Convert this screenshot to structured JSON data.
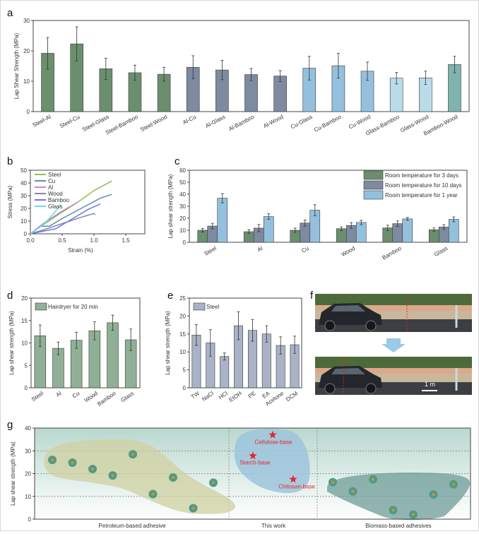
{
  "chart_data": [
    {
      "panel": "a",
      "type": "bar",
      "ylabel": "Lap Shear Strength (MPa)",
      "ylim": [
        0,
        30
      ],
      "yticks": [
        "0",
        "10",
        "20",
        "30"
      ],
      "categories": [
        "Steel-Al",
        "Steel-Cu",
        "Steel-Glass",
        "Steel-Bamboo",
        "Steel-Wood",
        "Al-Cu",
        "Al-Glass",
        "Al-Bamboo",
        "Al-Wood",
        "Cu-Glass",
        "Cu-Bamboo",
        "Cu-Wood",
        "Glass-Bamboo",
        "Glass-Wood",
        "Bamboo-Wood"
      ],
      "values": [
        19.2,
        22.3,
        14.1,
        12.8,
        12.3,
        14.6,
        13.7,
        12.2,
        11.7,
        14.3,
        15.1,
        13.3,
        11.0,
        11.1,
        15.5
      ],
      "errors": [
        5.2,
        5.6,
        3.5,
        2.5,
        2.3,
        3.8,
        3.2,
        2.0,
        1.8,
        3.9,
        4.1,
        3.0,
        1.9,
        2.2,
        2.7
      ],
      "colors": [
        "#6b8f6e",
        "#6b8f6e",
        "#6b8f6e",
        "#6b8f6e",
        "#6b8f6e",
        "#7d8aa0",
        "#7d8aa0",
        "#7d8aa0",
        "#7d8aa0",
        "#94c0de",
        "#94c0de",
        "#94c0de",
        "#b9dcea",
        "#b9dcea",
        "#7fb3ad"
      ]
    },
    {
      "panel": "b",
      "type": "line",
      "xlabel": "Strain (%)",
      "ylabel": "Stress (MPa)",
      "xlim": [
        0,
        1.8
      ],
      "ylim": [
        0,
        50
      ],
      "xticks": [
        "0.0",
        "0.5",
        "1.0",
        "1.5"
      ],
      "yticks": [
        "0",
        "10",
        "20",
        "30",
        "40",
        "50"
      ],
      "series": [
        {
          "name": "Steel",
          "color": "#8cc152",
          "points": [
            [
              0,
              0
            ],
            [
              0.2,
              7
            ],
            [
              0.5,
              17
            ],
            [
              0.75,
              25
            ],
            [
              1.0,
              34
            ],
            [
              1.28,
              41.5
            ]
          ]
        },
        {
          "name": "Cu",
          "color": "#5f90a3",
          "points": [
            [
              0,
              0
            ],
            [
              0.15,
              6
            ],
            [
              0.3,
              6
            ],
            [
              0.5,
              12
            ],
            [
              0.8,
              20
            ],
            [
              1.1,
              28
            ],
            [
              1.28,
              31
            ]
          ]
        },
        {
          "name": "Al",
          "color": "#c585d6",
          "points": [
            [
              0,
              0
            ],
            [
              0.2,
              8
            ],
            [
              0.5,
              18
            ],
            [
              0.75,
              25
            ]
          ]
        },
        {
          "name": "Wood",
          "color": "#8585a5",
          "points": [
            [
              0,
              0
            ],
            [
              0.2,
              3
            ],
            [
              0.5,
              8
            ],
            [
              0.8,
              13
            ],
            [
              1.0,
              16
            ],
            [
              1.02,
              15
            ]
          ]
        },
        {
          "name": "Bamboo",
          "color": "#7474e6",
          "points": [
            [
              0,
              0
            ],
            [
              0.2,
              2
            ],
            [
              0.4,
              4
            ],
            [
              0.6,
              10
            ],
            [
              0.9,
              19
            ],
            [
              1.1,
              23.5
            ]
          ]
        },
        {
          "name": "Glass",
          "color": "#62dcf2",
          "points": [
            [
              0,
              0
            ],
            [
              0.2,
              7
            ],
            [
              0.35,
              15
            ],
            [
              0.48,
              23
            ]
          ]
        }
      ]
    },
    {
      "panel": "c",
      "type": "bar",
      "ylabel": "Lap shear strength (MPa)",
      "ylim": [
        0,
        60
      ],
      "yticks": [
        "0",
        "10",
        "20",
        "30",
        "40",
        "50",
        "60"
      ],
      "categories": [
        "Steel",
        "Al",
        "Cu",
        "Wood",
        "Bamboo",
        "Glass"
      ],
      "series": [
        {
          "name": "Room temperature for 3 days",
          "color": "#6b8f6e",
          "values": [
            10.0,
            8.8,
            10.0,
            11.3,
            12.0,
            10.4
          ],
          "errors": [
            1.5,
            1.6,
            1.8,
            1.5,
            2.2,
            1.5
          ]
        },
        {
          "name": "Room temperature for 10 days",
          "color": "#7d8aa0",
          "values": [
            13.5,
            11.8,
            16.0,
            14.0,
            15.5,
            12.7
          ],
          "errors": [
            2.3,
            3.0,
            2.5,
            2.4,
            2.3,
            2.0
          ]
        },
        {
          "name": "Room temperature for 1 year",
          "color": "#94c0de",
          "values": [
            36.7,
            21.4,
            26.7,
            16.5,
            19.5,
            19.1
          ],
          "errors": [
            3.8,
            2.3,
            4.6,
            1.8,
            1.2,
            2.0
          ]
        }
      ]
    },
    {
      "panel": "d",
      "type": "bar",
      "ylabel": "Lap shear strength (MPa)",
      "ylim": [
        0,
        20
      ],
      "yticks": [
        "0",
        "5",
        "10",
        "15",
        "20"
      ],
      "legend": "Hairdryer for 20 min",
      "color": "#8fb096",
      "categories": [
        "Steel",
        "Al",
        "Cu",
        "Wood",
        "Bamboo",
        "Glass"
      ],
      "values": [
        11.6,
        8.8,
        10.6,
        12.7,
        14.5,
        10.7
      ],
      "errors": [
        2.4,
        1.4,
        1.8,
        2.0,
        1.7,
        2.4
      ]
    },
    {
      "panel": "e",
      "type": "bar",
      "ylabel": "Lap shear strength (MPa)",
      "ylim": [
        0,
        25
      ],
      "yticks": [
        "0",
        "5",
        "10",
        "15",
        "20",
        "25"
      ],
      "legend": "Steel",
      "color": "#a9b2c6",
      "categories": [
        "TW",
        "NaCl",
        "HCl",
        "EtOH",
        "PE",
        "EA",
        "Acetone",
        "DCM"
      ],
      "values": [
        14.7,
        12.5,
        8.7,
        17.3,
        16.0,
        15.0,
        11.8,
        12.0
      ],
      "errors": [
        2.9,
        3.7,
        1.0,
        3.9,
        3.0,
        2.3,
        2.4,
        2.4
      ]
    },
    {
      "panel": "g",
      "type": "scatter",
      "ylabel": "Lap shear strength (MPa)",
      "ylim": [
        0,
        40
      ],
      "yticks": [
        "0",
        "10",
        "20",
        "30",
        "40"
      ],
      "groups": [
        {
          "name": "Petroleum-based adhesive",
          "values": [
            26,
            24.8,
            22,
            19.2,
            28.5,
            11,
            18.3,
            4.8,
            16
          ]
        },
        {
          "name": "This work",
          "points": [
            {
              "label": "Cellulose-base",
              "value": 37
            },
            {
              "label": "Starch-base",
              "value": 27.8
            },
            {
              "label": "Chitosan-base",
              "value": 17.5
            }
          ]
        },
        {
          "name": "Biomass-based adhesives",
          "values": [
            16.2,
            12.2,
            17.5,
            4,
            2,
            10.8,
            15.3
          ]
        }
      ]
    }
  ],
  "panels": {
    "a": "a",
    "b": "b",
    "c": "c",
    "d": "d",
    "e": "e",
    "f": "f",
    "g": "g"
  },
  "photo": {
    "scale_label": "1 m"
  }
}
